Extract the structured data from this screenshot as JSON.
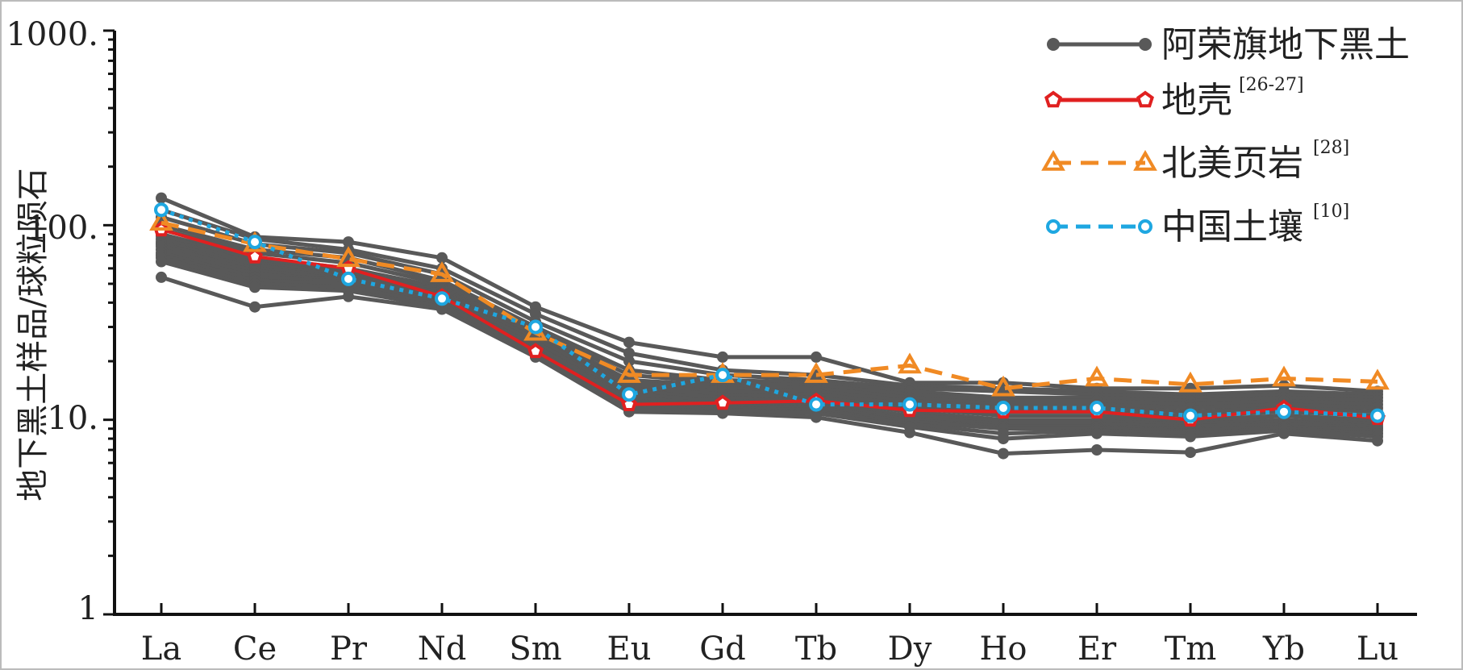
{
  "chart_data": {
    "type": "line",
    "ylabel": "地下黑土样品/球粒陨石",
    "y_scale": "log",
    "ylim": [
      1,
      1000
    ],
    "y_ticks": [
      "1",
      "10.",
      "100.",
      "1000."
    ],
    "categories": [
      "La",
      "Ce",
      "Pr",
      "Nd",
      "Sm",
      "Eu",
      "Gd",
      "Tb",
      "Dy",
      "Ho",
      "Er",
      "Tm",
      "Yb",
      "Lu"
    ],
    "grid": false,
    "legend_position": "top-right",
    "legend": [
      {
        "series": "arong",
        "label": "阿荣旗地下黑土",
        "sup": ""
      },
      {
        "series": "crust",
        "label": "地壳",
        "sup": "[26-27]"
      },
      {
        "series": "nasc",
        "label": "北美页岩",
        "sup": "[28]"
      },
      {
        "series": "china",
        "label": "中国土壤",
        "sup": "[10]"
      }
    ],
    "colors": {
      "arong": "#595959",
      "crust": "#e02020",
      "nasc": "#f08a24",
      "china": "#1ea7e1"
    },
    "series_samples": [
      {
        "values": [
          138,
          87,
          82,
          68,
          38,
          25,
          21,
          21,
          15.5,
          15.5,
          14.5,
          14.5,
          15,
          14
        ]
      },
      {
        "values": [
          120,
          85,
          75,
          60,
          35,
          22,
          18,
          17,
          15,
          14.5,
          14,
          13.5,
          14,
          13.5
        ]
      },
      {
        "values": [
          110,
          80,
          72,
          56,
          32,
          20,
          17,
          16,
          14.5,
          14,
          13.5,
          13,
          13.5,
          13
        ]
      },
      {
        "values": [
          100,
          75,
          68,
          52,
          30,
          18,
          16,
          15.5,
          14,
          13,
          13,
          12.5,
          13,
          12.5
        ]
      },
      {
        "values": [
          95,
          72,
          64,
          50,
          29,
          17,
          15.5,
          15,
          13.5,
          12.5,
          12.5,
          12,
          12.5,
          12
        ]
      },
      {
        "values": [
          90,
          68,
          60,
          48,
          28,
          16,
          15,
          14.5,
          13,
          12,
          12,
          11.5,
          12,
          11.5
        ]
      },
      {
        "values": [
          88,
          66,
          58,
          47,
          27,
          15.5,
          14.5,
          14,
          12.5,
          11.5,
          11.5,
          11,
          11.5,
          11
        ]
      },
      {
        "values": [
          85,
          64,
          56,
          46,
          26,
          15,
          14,
          13.5,
          12,
          11,
          11,
          10.5,
          11,
          10.5
        ]
      },
      {
        "values": [
          82,
          62,
          55,
          45,
          26,
          14.5,
          13.5,
          13,
          11.5,
          10.5,
          10.5,
          10,
          10.5,
          10
        ]
      },
      {
        "values": [
          80,
          60,
          54,
          44,
          25,
          14,
          13,
          12.5,
          11,
          10,
          10,
          9.8,
          10.5,
          9.8
        ]
      },
      {
        "values": [
          78,
          58,
          53,
          43,
          25,
          13.5,
          12.5,
          12,
          10.5,
          9.8,
          9.8,
          9.5,
          10,
          9.5
        ]
      },
      {
        "values": [
          75,
          56,
          52,
          42,
          24,
          13,
          12,
          11.8,
          10.2,
          9.5,
          9.5,
          9.2,
          9.8,
          9.2
        ]
      },
      {
        "values": [
          72,
          54,
          51,
          41,
          24,
          12.5,
          11.8,
          11.5,
          10,
          9.2,
          9.2,
          9,
          9.5,
          9
        ]
      },
      {
        "values": [
          70,
          52,
          50,
          40,
          23,
          12,
          11.5,
          11.2,
          9.8,
          9,
          9,
          8.8,
          9.2,
          8.8
        ]
      },
      {
        "values": [
          68,
          50,
          48,
          39,
          22.5,
          11.8,
          11.2,
          11,
          9.5,
          8.5,
          8.8,
          8.5,
          9,
          8.5
        ]
      },
      {
        "values": [
          65,
          48,
          46,
          38,
          22,
          11.5,
          11,
          10.8,
          9.2,
          8,
          8.5,
          8.2,
          8.8,
          8.2
        ]
      },
      {
        "values": [
          54,
          38,
          43,
          37,
          21,
          11,
          10.8,
          10.3,
          8.6,
          6.7,
          7,
          6.8,
          8.5,
          7.8
        ]
      }
    ],
    "series": [
      {
        "key": "crust",
        "values": [
          95,
          69,
          60,
          43,
          22.5,
          12,
          12.2,
          12.5,
          11.2,
          11,
          11,
          10,
          11.5,
          10.2
        ]
      },
      {
        "key": "nasc",
        "values": [
          103,
          80,
          67,
          56,
          28,
          17,
          17,
          17,
          19,
          14.5,
          16.3,
          15.2,
          16.3,
          15.7
        ]
      },
      {
        "key": "china",
        "values": [
          120,
          82,
          53,
          42,
          30,
          13.5,
          17,
          12,
          12,
          11.5,
          11.5,
          10.5,
          11,
          10.5
        ]
      }
    ]
  }
}
